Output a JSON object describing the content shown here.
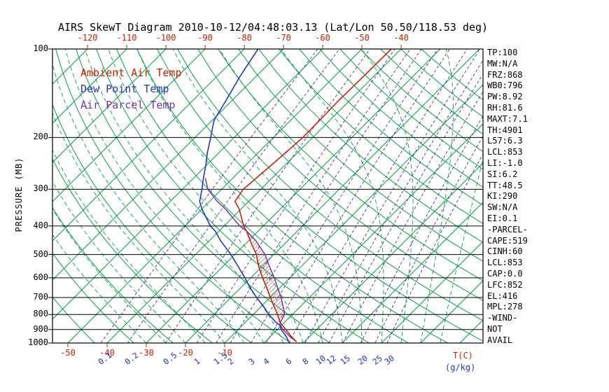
{
  "title": "AIRS SkewT Diagram 2010-10-12/04:48:03.13 (Lat/Lon 50.50/118.53 deg)",
  "colors": {
    "ambient": "#cc2200",
    "dewpoint": "#2233cc",
    "parcel": "#7733aa",
    "green": "#00a344",
    "mixing": "#443399",
    "hatch": "#aa3333",
    "axis_red": "#cc2200",
    "axis_blue": "#2233cc",
    "frame": "#000000"
  },
  "legend": {
    "items": [
      {
        "label": "Ambient Air Temp",
        "color_key": "ambient"
      },
      {
        "label": "Dew Point Temp",
        "color_key": "dewpoint"
      },
      {
        "label": "Air Parcel Temp",
        "color_key": "parcel"
      }
    ]
  },
  "axes": {
    "pressure_label": "PRESSURE (MB)",
    "pressure_ticks": [
      100,
      200,
      300,
      400,
      500,
      600,
      700,
      800,
      900,
      1000
    ],
    "top_temp_ticks": [
      -120,
      -110,
      -100,
      -90,
      -80,
      -70,
      -60,
      -50,
      -40
    ],
    "bottom_temp_ticks": [
      -50,
      -40,
      -30,
      -20,
      -10
    ],
    "temp_unit_label": "T(C)",
    "mixing_unit_label": "(g/kg)"
  },
  "stats_panel": {
    "lines": [
      "TP:100",
      "MW:N/A",
      "FRZ:868",
      "WB0:796",
      "PW:8.92",
      "RH:81.6",
      "MAXT:7.1",
      "TH:4901",
      "L57:6.3",
      "LCL:853",
      "LI:-1.0",
      "SI:6.2",
      "TT:48.5",
      "KI:290",
      "SW:N/A",
      "EI:0.1",
      "-PARCEL-",
      "CAPE:519",
      "CINH:60",
      "LCL:853",
      "CAP:0.0",
      "LFC:852",
      "EL:416",
      "MPL:278",
      "-WIND-",
      "NOT",
      "AVAIL"
    ]
  },
  "chart_data": {
    "type": "line",
    "title": "AIRS SkewT Diagram",
    "xlabel": "Temperature (C)",
    "ylabel": "Pressure (mb)",
    "pressure_axis": {
      "min": 100,
      "max": 1000,
      "scale": "log"
    },
    "temp_axis": {
      "top_labels": [
        -120,
        -110,
        -100,
        -90,
        -80,
        -70,
        -60,
        -50,
        -40
      ],
      "bottom_labels": [
        -50,
        -40,
        -30,
        -20,
        -10
      ],
      "skew_deg": 45
    },
    "grid": {
      "isotherms_c": {
        "min": -130,
        "max": 60,
        "step": 10
      },
      "dry_adiabats_k": {
        "min": 230,
        "max": 460,
        "step": 10
      },
      "moist_adiabats_c": {
        "min": -30,
        "max": 45,
        "step": 5
      },
      "mixing_ratio_g_kg": [
        0.1,
        0.2,
        0.5,
        1,
        1.5,
        2,
        3,
        4,
        6,
        8,
        10,
        12,
        15,
        20,
        25,
        30
      ]
    },
    "profile": {
      "pressure": [
        990,
        950,
        900,
        868,
        853,
        800,
        750,
        700,
        650,
        600,
        550,
        500,
        450,
        416,
        400,
        350,
        330,
        300,
        275,
        250,
        225,
        200,
        175,
        150,
        125,
        100
      ],
      "temp": [
        8.0,
        5.3,
        2.2,
        0.0,
        -1.0,
        -3.8,
        -6.8,
        -10.0,
        -13.3,
        -17.0,
        -20.8,
        -24.5,
        -29.5,
        -33.0,
        -35.0,
        -40.5,
        -43.5,
        -44.5,
        -44.0,
        -43.5,
        -43.0,
        -42.5,
        -42.6,
        -42.8,
        -42.6,
        -42.5
      ],
      "dewpoint": [
        6.0,
        4.0,
        1.0,
        -0.6,
        -2.0,
        -6.0,
        -9.5,
        -13.5,
        -17.5,
        -21.5,
        -26.0,
        -31.0,
        -37.0,
        -41.0,
        -43.5,
        -50.0,
        -52.5,
        -55.0,
        -57.5,
        -60.0,
        -63.0,
        -66.0,
        -69.5,
        -71.5,
        -74.0,
        -76.5
      ],
      "parcel": [
        8.0,
        4.9,
        1.5,
        -0.5,
        -1.0,
        -2.0,
        -4.5,
        -7.2,
        -10.5,
        -14.0,
        -18.0,
        -22.3,
        -28.0,
        -33.0,
        -36.0,
        -44.0,
        -48.0,
        -53.5,
        -57.0,
        null,
        null,
        null,
        null,
        null,
        null,
        null
      ]
    },
    "series_names": [
      "Ambient Air Temp",
      "Dew Point Temp",
      "Air Parcel Temp"
    ],
    "cape_area": {
      "bottom_p": 853,
      "top_p": 416,
      "cape_j_kg": 519,
      "cinh_j_kg": 60
    },
    "legend_position": "top-left-inside"
  }
}
